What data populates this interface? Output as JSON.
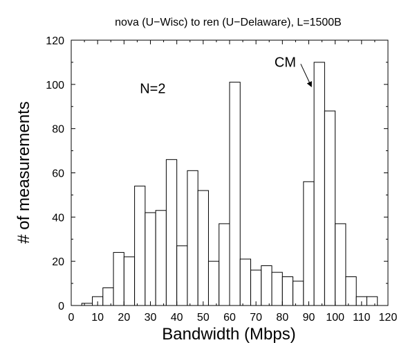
{
  "chart_data": {
    "type": "bar",
    "title": "nova (U−Wisc) to ren (U−Delaware), L=1500B",
    "xlabel": "Bandwidth (Mbps)",
    "ylabel": "# of measurements",
    "xlim": [
      0,
      120
    ],
    "ylim": [
      0,
      120
    ],
    "xticks": [
      "0",
      "10",
      "20",
      "30",
      "40",
      "50",
      "60",
      "70",
      "80",
      "90",
      "100",
      "110",
      "120"
    ],
    "yticks": [
      "0",
      "20",
      "40",
      "60",
      "80",
      "100",
      "120"
    ],
    "bin_width": 4,
    "bins": [
      {
        "x0": 4,
        "count": 1
      },
      {
        "x0": 8,
        "count": 4
      },
      {
        "x0": 12,
        "count": 8
      },
      {
        "x0": 16,
        "count": 24
      },
      {
        "x0": 20,
        "count": 22
      },
      {
        "x0": 24,
        "count": 54
      },
      {
        "x0": 28,
        "count": 42
      },
      {
        "x0": 32,
        "count": 43
      },
      {
        "x0": 36,
        "count": 66
      },
      {
        "x0": 40,
        "count": 27
      },
      {
        "x0": 44,
        "count": 61
      },
      {
        "x0": 48,
        "count": 52
      },
      {
        "x0": 52,
        "count": 20
      },
      {
        "x0": 56,
        "count": 37
      },
      {
        "x0": 60,
        "count": 101
      },
      {
        "x0": 64,
        "count": 21
      },
      {
        "x0": 68,
        "count": 16
      },
      {
        "x0": 72,
        "count": 18
      },
      {
        "x0": 76,
        "count": 15
      },
      {
        "x0": 80,
        "count": 13
      },
      {
        "x0": 84,
        "count": 11
      },
      {
        "x0": 88,
        "count": 56
      },
      {
        "x0": 92,
        "count": 110
      },
      {
        "x0": 96,
        "count": 88
      },
      {
        "x0": 100,
        "count": 37
      },
      {
        "x0": 104,
        "count": 13
      },
      {
        "x0": 108,
        "count": 4
      },
      {
        "x0": 112,
        "count": 4
      }
    ],
    "annotations": [
      {
        "text": "N=2",
        "x": 26,
        "y": 96
      },
      {
        "text": "CM",
        "x": 77,
        "y": 108,
        "arrow_to": {
          "x": 91,
          "y": 99
        }
      }
    ],
    "grid": false,
    "colors": {
      "bar_fill": "#ffffff",
      "bar_stroke": "#000000",
      "axis": "#000000"
    }
  }
}
